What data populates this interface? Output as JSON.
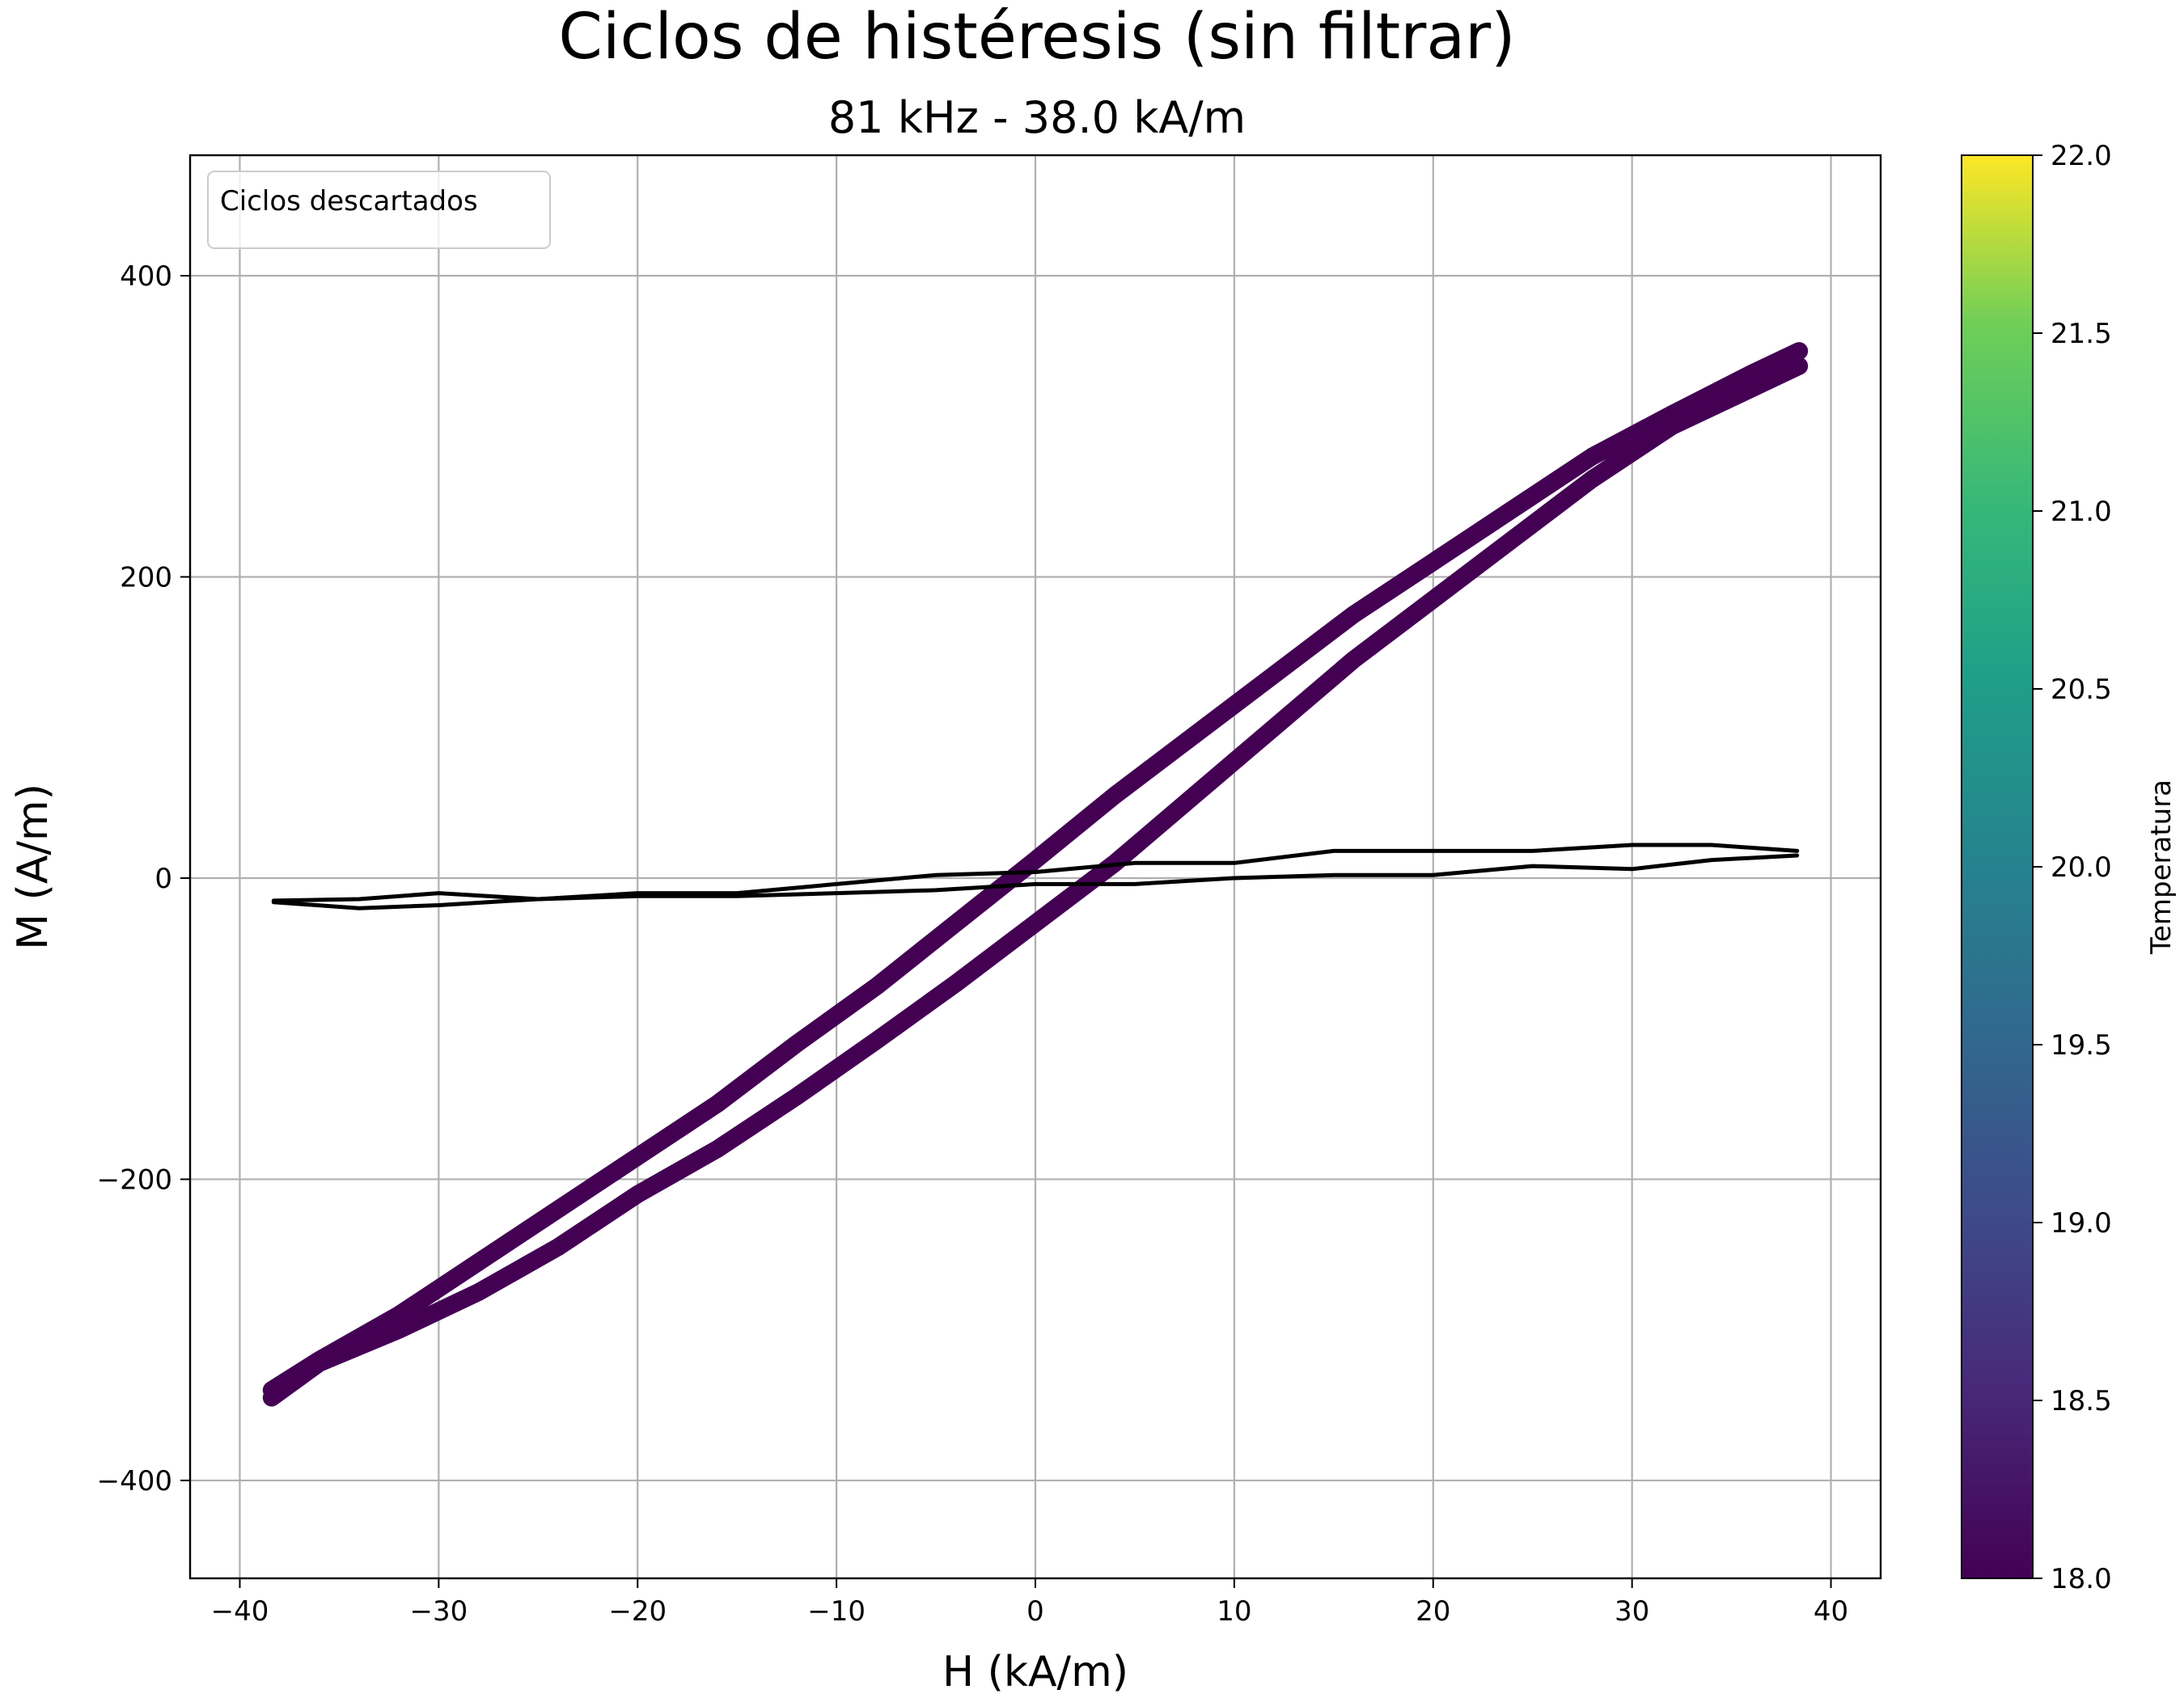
{
  "chart_data": {
    "type": "line",
    "title": "Ciclos de histéresis (sin filtrar)",
    "subtitle": "81 kHz - 38.0 kA/m",
    "xlabel": "H (kA/m)",
    "ylabel": "M (A/m)",
    "xlim": [
      -42.5,
      42.5
    ],
    "ylim": [
      -465,
      480
    ],
    "xticks": [
      -40,
      -30,
      -20,
      -10,
      0,
      10,
      20,
      30,
      40
    ],
    "yticks": [
      -400,
      -200,
      0,
      200,
      400
    ],
    "xtick_labels": [
      "−40",
      "−30",
      "−20",
      "−10",
      "0",
      "10",
      "20",
      "30",
      "40"
    ],
    "ytick_labels": [
      "−400",
      "−200",
      "0",
      "200",
      "400"
    ],
    "grid": true,
    "legend": {
      "title": "Ciclos descartados",
      "placement": "top-left"
    },
    "colorbar": {
      "label": "Temperatura",
      "range": [
        18.0,
        22.0
      ],
      "ticks": [
        18.0,
        18.5,
        19.0,
        19.5,
        20.0,
        20.5,
        21.0,
        21.5,
        22.0
      ],
      "tick_labels": [
        "18.0",
        "18.5",
        "19.0",
        "19.5",
        "20.0",
        "20.5",
        "21.0",
        "21.5",
        "22.0"
      ],
      "colormap": "viridis"
    },
    "series": [
      {
        "branch": "upper",
        "color": "#440154",
        "x": [
          -38.4,
          -36,
          -32,
          -28,
          -24,
          -20,
          -16,
          -12,
          -8,
          -4,
          0,
          4,
          8,
          12,
          16,
          20,
          24,
          28,
          32,
          36,
          38.4
        ],
        "y": [
          -340,
          -320,
          -290,
          -255,
          -220,
          -185,
          -150,
          -110,
          -72,
          -30,
          12,
          55,
          95,
          135,
          175,
          210,
          245,
          280,
          308,
          335,
          350
        ]
      },
      {
        "branch": "lower",
        "color": "#440154",
        "x": [
          38.4,
          36,
          32,
          28,
          24,
          20,
          16,
          12,
          8,
          4,
          0,
          -4,
          -8,
          -12,
          -16,
          -20,
          -24,
          -28,
          -32,
          -36,
          -38.4
        ],
        "y": [
          340,
          325,
          300,
          265,
          225,
          185,
          145,
          100,
          55,
          10,
          -30,
          -70,
          -108,
          -145,
          -180,
          -210,
          -245,
          -275,
          -300,
          -322,
          -345
        ]
      },
      {
        "branch": "upper",
        "color": "#000000",
        "x": [
          -38.3,
          -34,
          -30,
          -25,
          -20,
          -15,
          -10,
          -5,
          0,
          5,
          10,
          15,
          20,
          25,
          30,
          34,
          38.3
        ],
        "y": [
          -15,
          -14,
          -10,
          -14,
          -10,
          -10,
          -4,
          2,
          4,
          10,
          10,
          18,
          18,
          18,
          22,
          22,
          18
        ]
      },
      {
        "branch": "lower",
        "color": "#000000",
        "x": [
          38.3,
          34,
          30,
          25,
          20,
          15,
          10,
          5,
          0,
          -5,
          -10,
          -15,
          -20,
          -25,
          -30,
          -34,
          -38.3
        ],
        "y": [
          15,
          12,
          6,
          8,
          2,
          2,
          0,
          -4,
          -4,
          -8,
          -10,
          -12,
          -12,
          -14,
          -18,
          -20,
          -16
        ]
      }
    ]
  }
}
